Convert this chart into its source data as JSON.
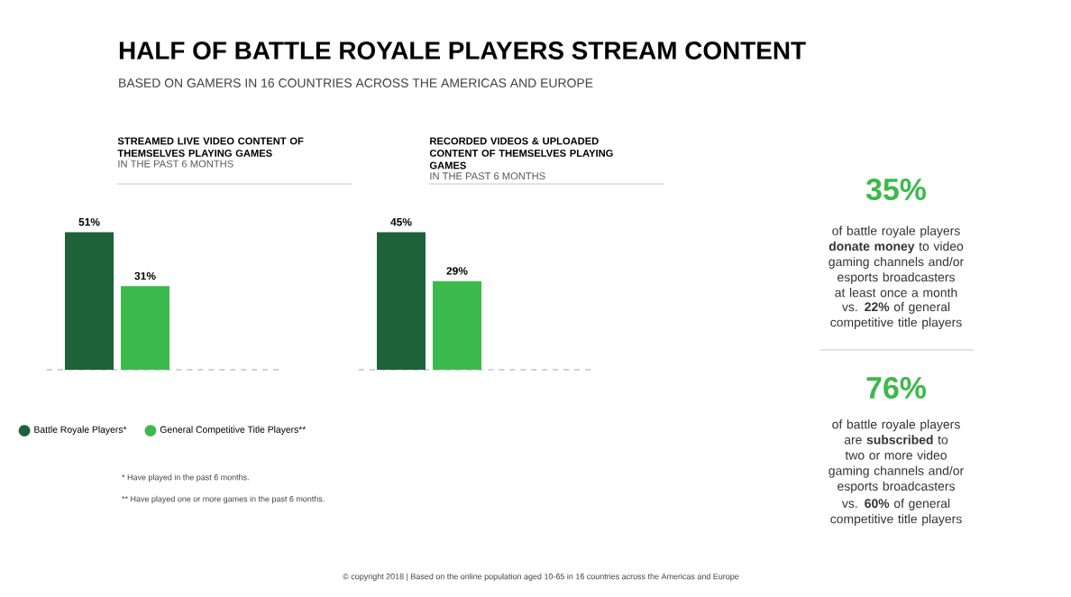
{
  "chart_data": [
    {
      "type": "other",
      "title": "HALF OF BATTLE ROYALE PLAYERS STREAM CONTENT",
      "subtitle": "BASED ON GAMERS IN 16 COUNTRIES ACROSS THE AMERICAS AND EUROPE",
      "annotations": [
        "* Have played in the past 6 months.",
        "** Have played one or more games in the past 6 months.",
        "© copyright 2018 | Based on the online population aged 10-65 in 16 countries across the Americas and Europe"
      ]
    },
    {
      "type": "bar",
      "title": "STREAMED LIVE VIDEO CONTENT OF THEMSELVES PLAYING GAMES",
      "subtitle": "IN THE PAST 6 MONTHS",
      "categories": [
        null
      ],
      "legend": "bottom",
      "series": [
        {
          "name": "Battle Royale Players*",
          "color": "#1d6238",
          "values": [
            51
          ],
          "value_labels": [
            "51%"
          ]
        },
        {
          "name": "General Competitive Title Players**",
          "color": "#3cb94c",
          "values": [
            31
          ],
          "value_labels": [
            "31%"
          ]
        }
      ]
    },
    {
      "type": "bar",
      "title": "RECORDED VIDEOS & UPLOADED CONTENT OF THEMSELVES PLAYING GAMES",
      "subtitle": "IN THE PAST 6 MONTHS",
      "categories": [
        null
      ],
      "series": [
        {
          "color": "#1d6238",
          "values": [
            45
          ],
          "value_labels": [
            "45%"
          ]
        },
        {
          "color": "#3cb94c",
          "values": [
            29
          ],
          "value_labels": [
            "29%"
          ]
        }
      ]
    },
    {
      "type": "other",
      "annotations": [
        "35%",
        "of battle royale players **donate money** to video gaming channels and/or esports broadcasters at least once a month",
        "vs. **22%** of general competitive title players",
        "76%",
        "of battle royale players are **subscribed** to two or more video gaming channels and/or esports broadcasters",
        "vs. **60%** of general competitive title players"
      ]
    }
  ]
}
